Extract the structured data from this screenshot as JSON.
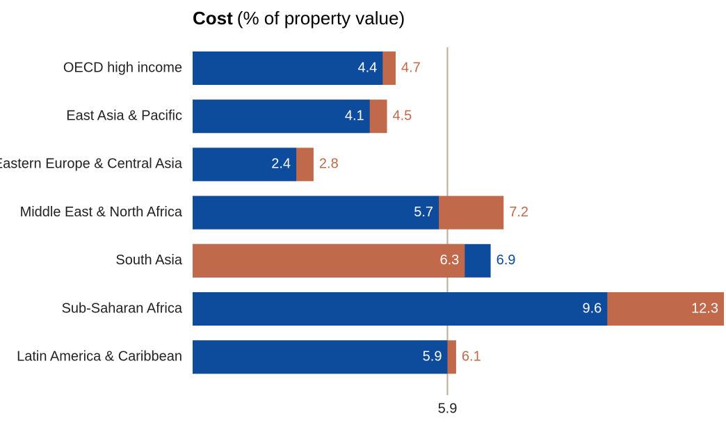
{
  "chart_data": {
    "type": "bar",
    "orientation": "horizontal",
    "title_bold": "Cost",
    "title": "(% of property value)",
    "categories": [
      "OECD high income",
      "East Asia & Pacific",
      "Eastern Europe & Central Asia",
      "Middle East & North Africa",
      "South Asia",
      "Sub-Saharan Africa",
      "Latin America & Caribbean"
    ],
    "series": [
      {
        "color": "#0d4c9c",
        "values": [
          4.4,
          4.1,
          2.4,
          5.7,
          6.9,
          9.6,
          5.9
        ]
      },
      {
        "color": "#c0694b",
        "values": [
          4.7,
          4.5,
          2.8,
          7.2,
          6.3,
          12.3,
          6.1
        ]
      }
    ],
    "xlim": [
      0,
      12.3
    ],
    "reference_line": {
      "value": 5.9,
      "label": "5.9",
      "color": "#b9ad96"
    }
  }
}
